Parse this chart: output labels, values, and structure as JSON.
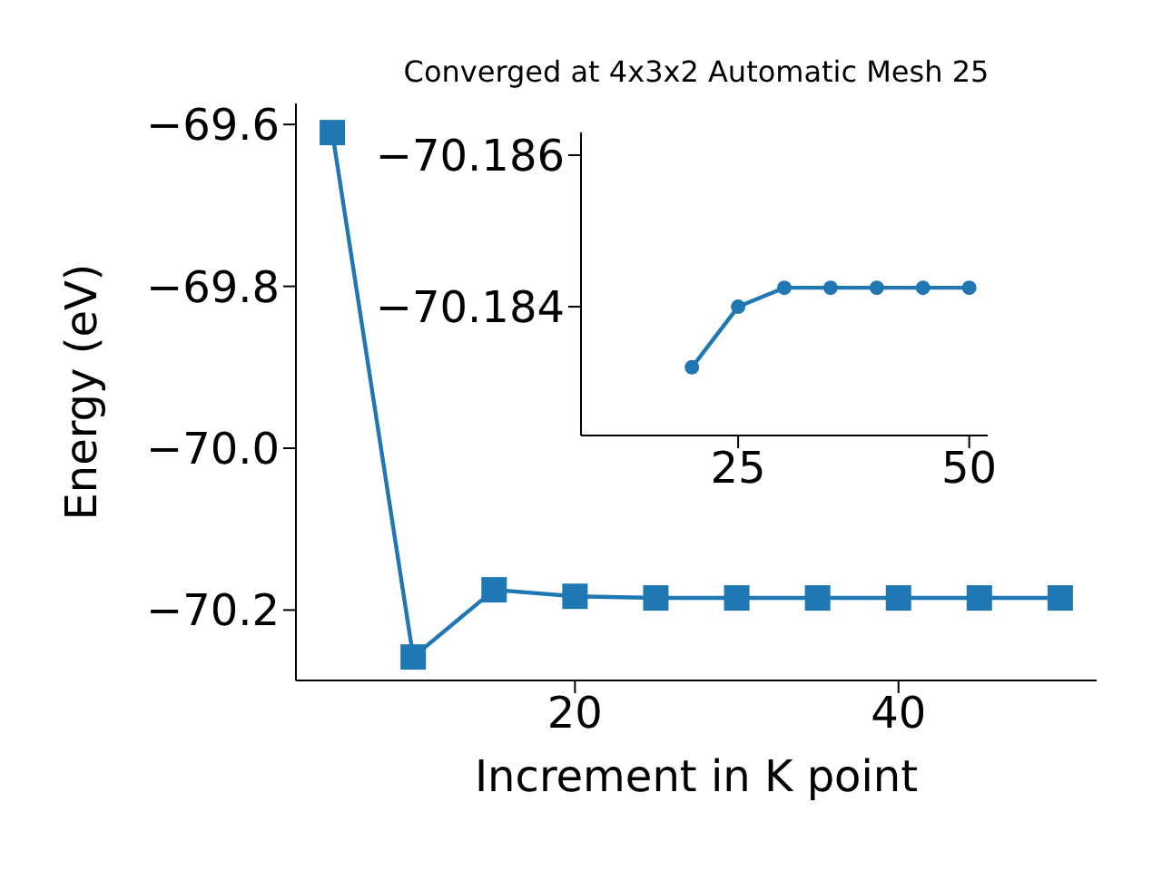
{
  "chart_data": [
    {
      "type": "line",
      "title": "Converged at 4x3x2 Automatic Mesh 25",
      "xlabel": "Increment in K point",
      "ylabel": "Energy (eV)",
      "marker": "square",
      "line_style": "solid",
      "x": [
        5,
        10,
        15,
        20,
        25,
        30,
        35,
        40,
        45,
        50
      ],
      "series": [
        {
          "color": "#1f77b4",
          "values": [
            -69.61,
            -70.258,
            -70.175,
            -70.183,
            -70.185,
            -70.185,
            -70.185,
            -70.185,
            -70.185,
            -70.185
          ]
        }
      ],
      "xlim": [
        2.75,
        52.25
      ],
      "xticks": [
        20,
        40
      ],
      "ylim": [
        -70.287,
        -69.574
      ],
      "yticks": [
        {
          "value": -69.6,
          "label": "−69.6"
        },
        {
          "value": -69.8,
          "label": "−69.8"
        },
        {
          "value": -70,
          "label": "−70.0"
        },
        {
          "value": -70.2,
          "label": "−70.2"
        }
      ]
    },
    {
      "type": "line",
      "marker": "circle",
      "line_style": "solid",
      "x": [
        20,
        25,
        30,
        35,
        40,
        45,
        50
      ],
      "series": [
        {
          "color": "#1f77b4",
          "values": [
            -70.1832,
            -70.184,
            -70.18425,
            -70.18425,
            -70.18425,
            -70.18425,
            -70.18425
          ]
        }
      ],
      "xlim": [
        8,
        52
      ],
      "xticks": [
        25,
        50
      ],
      "ylim": [
        -70.1823,
        -70.1863
      ],
      "yticks": [
        {
          "value": -70.186,
          "label": "−70.186"
        },
        {
          "value": -70.184,
          "label": "−70.184"
        }
      ]
    }
  ]
}
